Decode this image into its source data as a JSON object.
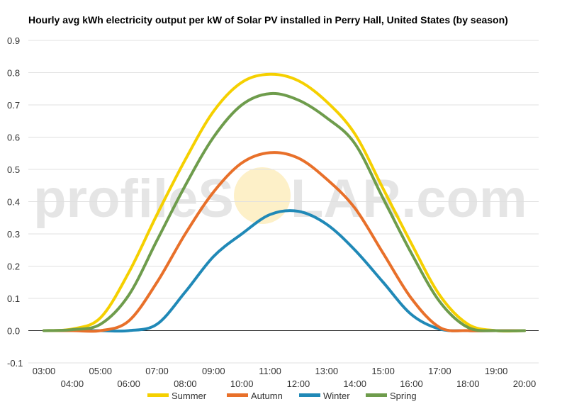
{
  "chart_data": {
    "type": "line",
    "title": "Hourly avg kWh electricity output per kW of Solar PV installed in Perry Hall, United States (by season)",
    "xlabel": "",
    "ylabel": "",
    "categories": [
      "03:00",
      "04:00",
      "05:00",
      "06:00",
      "07:00",
      "08:00",
      "09:00",
      "10:00",
      "11:00",
      "12:00",
      "13:00",
      "14:00",
      "15:00",
      "16:00",
      "17:00",
      "18:00",
      "19:00",
      "20:00"
    ],
    "ylim": [
      -0.1,
      0.9
    ],
    "yticks": [
      "-0.1",
      "0.0",
      "0.1",
      "0.2",
      "0.3",
      "0.4",
      "0.5",
      "0.6",
      "0.7",
      "0.8",
      "0.9"
    ],
    "grid": true,
    "legend_position": "bottom",
    "series": [
      {
        "name": "Summer",
        "color": "#f5d000",
        "values": [
          0.0,
          0.005,
          0.04,
          0.18,
          0.36,
          0.53,
          0.68,
          0.77,
          0.795,
          0.775,
          0.71,
          0.61,
          0.44,
          0.27,
          0.11,
          0.02,
          0.0,
          0.0
        ]
      },
      {
        "name": "Autumn",
        "color": "#e8702a",
        "values": [
          0.0,
          0.0,
          0.0,
          0.03,
          0.15,
          0.3,
          0.43,
          0.52,
          0.552,
          0.535,
          0.47,
          0.38,
          0.24,
          0.1,
          0.01,
          0.0,
          0.0,
          0.0
        ]
      },
      {
        "name": "Winter",
        "color": "#2089b7",
        "values": [
          0.0,
          0.0,
          0.0,
          0.0,
          0.02,
          0.12,
          0.23,
          0.3,
          0.36,
          0.37,
          0.33,
          0.25,
          0.15,
          0.05,
          0.005,
          0.0,
          0.0,
          0.0
        ]
      },
      {
        "name": "Spring",
        "color": "#6e9c4c",
        "values": [
          0.0,
          0.003,
          0.02,
          0.11,
          0.28,
          0.45,
          0.6,
          0.7,
          0.735,
          0.715,
          0.66,
          0.58,
          0.41,
          0.24,
          0.09,
          0.01,
          0.0,
          0.0
        ]
      }
    ]
  },
  "watermark": {
    "left": "profileS",
    "right": "LAR.com",
    "sun_color": "#fdf0c8"
  }
}
